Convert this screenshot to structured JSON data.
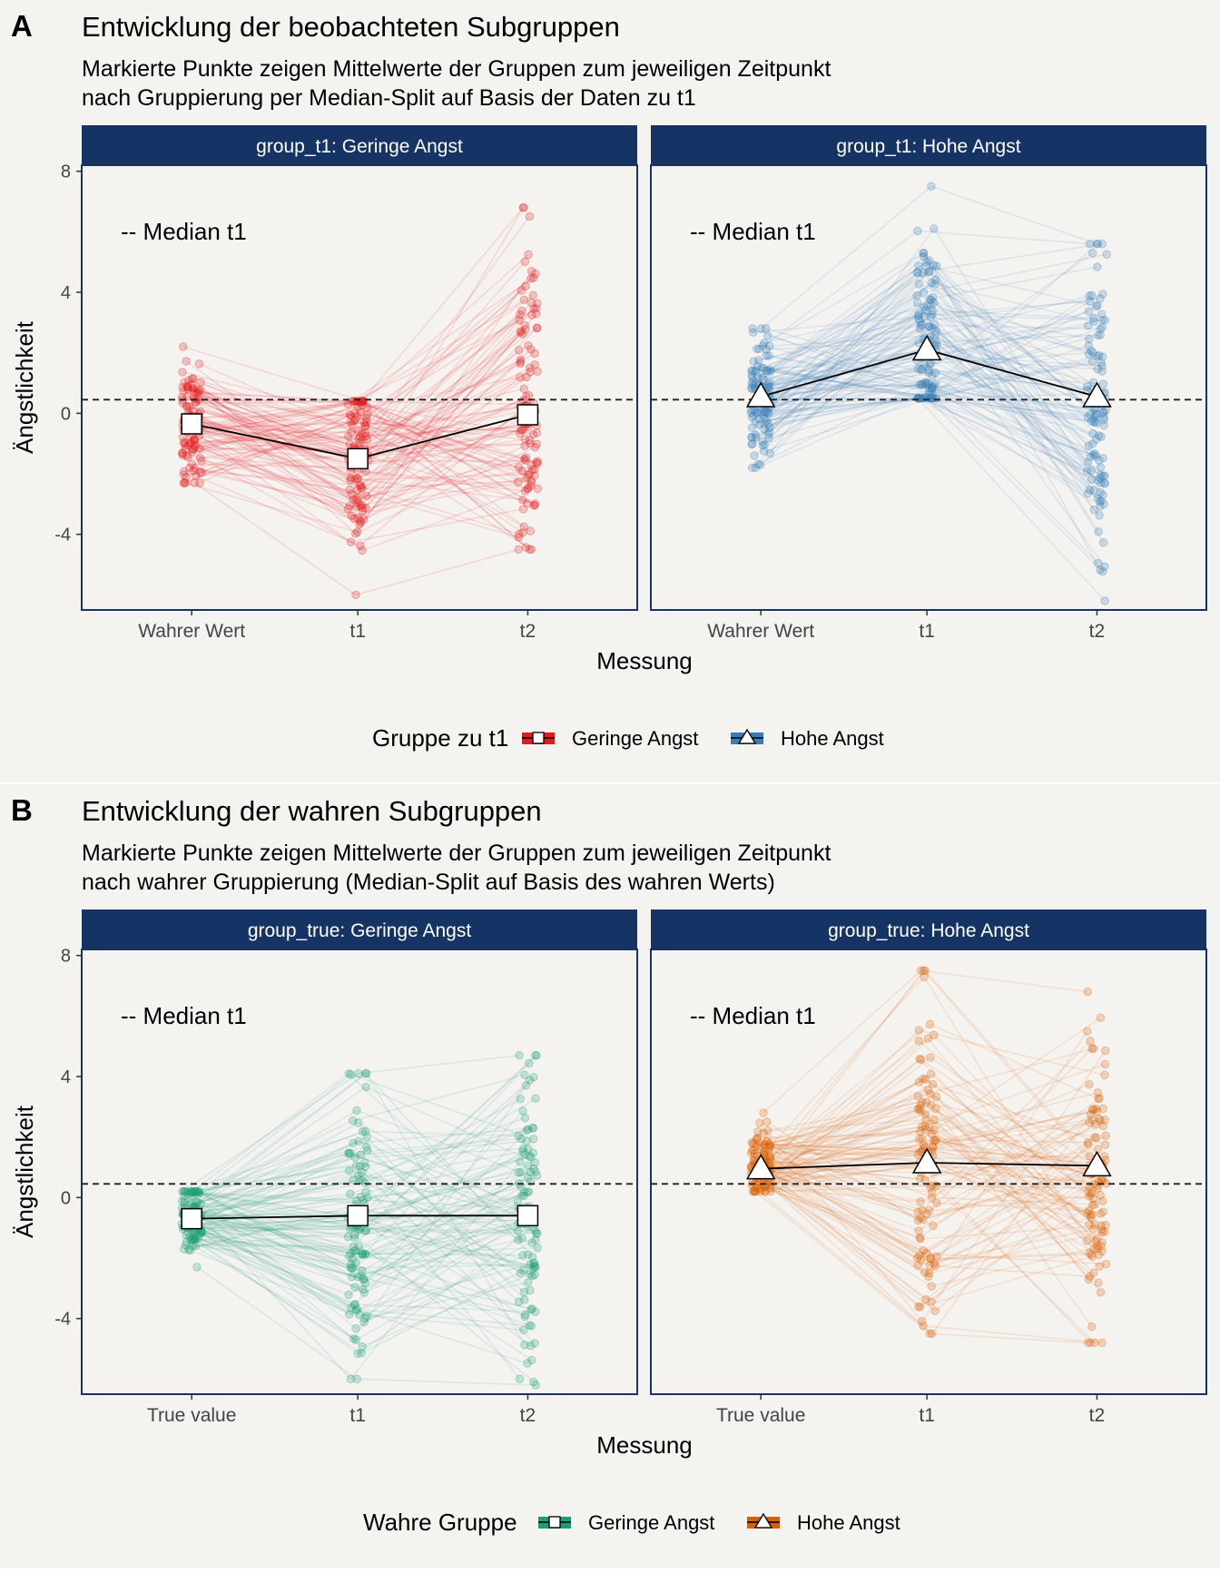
{
  "chart_data": [
    {
      "tag": "A",
      "title": "Entwicklung der beobachteten Subgruppen",
      "subtitle": [
        "Markierte Punkte zeigen Mittelwerte der Gruppen zum jeweiligen Zeitpunkt",
        "nach Gruppierung per Median-Split auf Basis der Daten zu t1"
      ],
      "type": "line",
      "xlabel": "Messung",
      "ylabel": "Ängstlichkeit",
      "ylim": [
        -6.5,
        8.2
      ],
      "yticks": [
        "-4",
        "0",
        "4",
        "8"
      ],
      "median_label": "-- Median t1",
      "median_value": 0.45,
      "legend_title": "Gruppe zu t1",
      "legend_items": [
        "Geringe Angst",
        "Hohe Angst"
      ],
      "panels": [
        {
          "strip": "group_t1: Geringe Angst",
          "categories": [
            "Wahrer Wert",
            "t1",
            "t2"
          ],
          "means": [
            -0.35,
            -1.5,
            -0.05
          ],
          "color": "#e41a1c",
          "marker": "square",
          "n": 110,
          "seed": 11,
          "ranges": [
            [
              -2.3,
              2.2
            ],
            [
              -6.0,
              0.4
            ],
            [
              -4.5,
              6.8
            ]
          ]
        },
        {
          "strip": "group_t1: Hohe Angst",
          "categories": [
            "Wahrer Wert",
            "t1",
            "t2"
          ],
          "means": [
            0.55,
            2.1,
            0.55
          ],
          "color": "#377eb8",
          "marker": "triangle",
          "n": 110,
          "seed": 23,
          "ranges": [
            [
              -1.8,
              2.8
            ],
            [
              0.5,
              7.5
            ],
            [
              -6.2,
              5.6
            ]
          ]
        }
      ]
    },
    {
      "tag": "B",
      "title": "Entwicklung der wahren Subgruppen",
      "subtitle": [
        "Markierte Punkte zeigen Mittelwerte der Gruppen zum jeweiligen Zeitpunkt",
        "nach wahrer Gruppierung (Median-Split auf Basis des wahren Werts)"
      ],
      "type": "line",
      "xlabel": "Messung",
      "ylabel": "Ängstlichkeit",
      "ylim": [
        -6.5,
        8.2
      ],
      "yticks": [
        "-4",
        "0",
        "4",
        "8"
      ],
      "median_label": "-- Median t1",
      "median_value": 0.45,
      "legend_title": "Wahre Gruppe",
      "legend_items": [
        "Geringe Angst",
        "Hohe Angst"
      ],
      "panels": [
        {
          "strip": "group_true: Geringe Angst",
          "categories": [
            "True value",
            "t1",
            "t2"
          ],
          "means": [
            -0.7,
            -0.6,
            -0.6
          ],
          "color": "#1b9e77",
          "marker": "square",
          "n": 110,
          "seed": 37,
          "ranges": [
            [
              -2.3,
              0.2
            ],
            [
              -6.0,
              4.1
            ],
            [
              -6.2,
              4.7
            ]
          ]
        },
        {
          "strip": "group_true: Hohe Angst",
          "categories": [
            "True value",
            "t1",
            "t2"
          ],
          "means": [
            0.95,
            1.15,
            1.05
          ],
          "color": "#d95f02",
          "marker": "triangle",
          "n": 110,
          "seed": 53,
          "ranges": [
            [
              0.2,
              2.8
            ],
            [
              -4.5,
              7.5
            ],
            [
              -4.8,
              6.8
            ]
          ]
        }
      ]
    }
  ],
  "colors": {
    "strip_bg": "#163365",
    "panel_border": "#163365",
    "background": "#f5f3f0",
    "median_line": "#222222"
  }
}
